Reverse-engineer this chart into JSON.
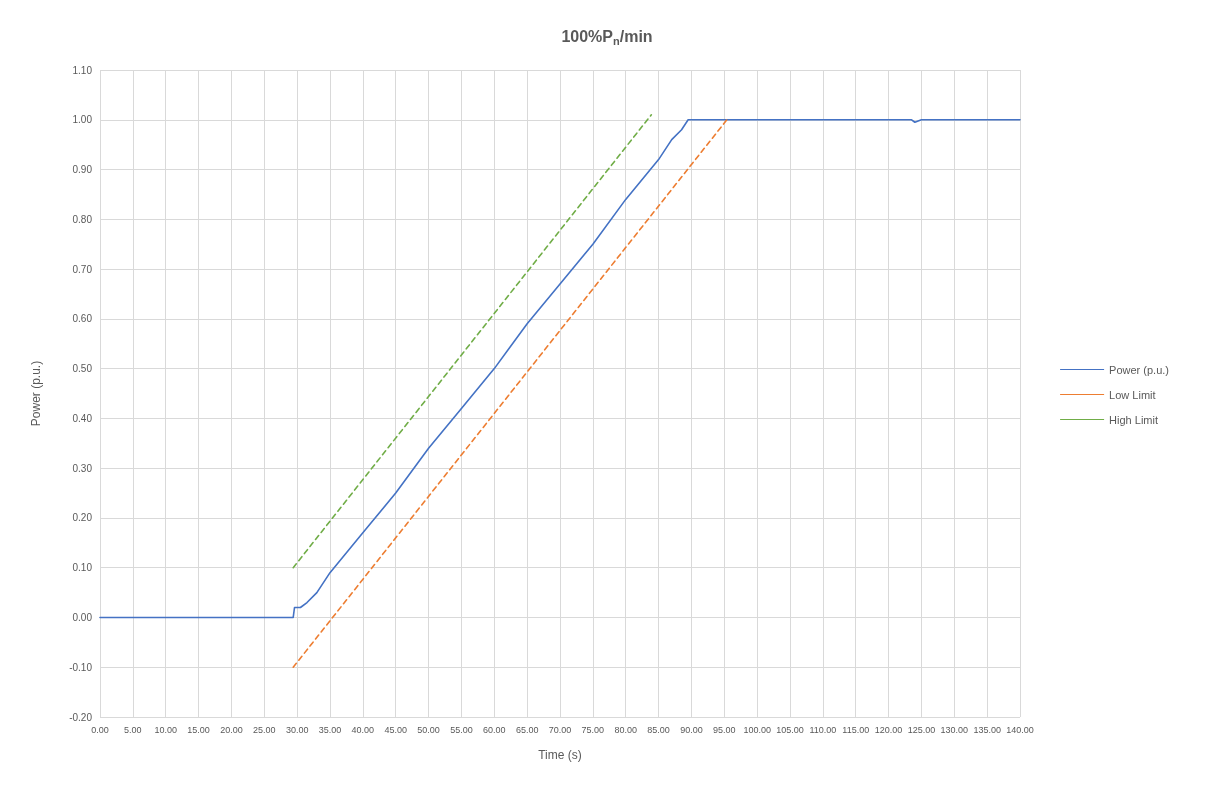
{
  "chart_data": {
    "type": "line",
    "title": "100%P$_{n}$/min",
    "xlabel": "Time (s)",
    "ylabel": "Power (p.u.)",
    "xlim": [
      0,
      140
    ],
    "xticks": [
      {
        "value": 0,
        "label": "0.00"
      },
      {
        "value": 5,
        "label": "5.00"
      },
      {
        "value": 10,
        "label": "10.00"
      },
      {
        "value": 15,
        "label": "15.00"
      },
      {
        "value": 20,
        "label": "20.00"
      },
      {
        "value": 25,
        "label": "25.00"
      },
      {
        "value": 30,
        "label": "30.00"
      },
      {
        "value": 35,
        "label": "35.00"
      },
      {
        "value": 40,
        "label": "40.00"
      },
      {
        "value": 45,
        "label": "45.00"
      },
      {
        "value": 50,
        "label": "50.00"
      },
      {
        "value": 55,
        "label": "55.00"
      },
      {
        "value": 60,
        "label": "60.00"
      },
      {
        "value": 65,
        "label": "65.00"
      },
      {
        "value": 70,
        "label": "70.00"
      },
      {
        "value": 75,
        "label": "75.00"
      },
      {
        "value": 80,
        "label": "80.00"
      },
      {
        "value": 85,
        "label": "85.00"
      },
      {
        "value": 90,
        "label": "90.00"
      },
      {
        "value": 95,
        "label": "95.00"
      },
      {
        "value": 100,
        "label": "100.00"
      },
      {
        "value": 105,
        "label": "105.00"
      },
      {
        "value": 110,
        "label": "110.00"
      },
      {
        "value": 115,
        "label": "115.00"
      },
      {
        "value": 120,
        "label": "120.00"
      },
      {
        "value": 125,
        "label": "125.00"
      },
      {
        "value": 130,
        "label": "130.00"
      },
      {
        "value": 135,
        "label": "135.00"
      },
      {
        "value": 140,
        "label": "140.00"
      }
    ],
    "ylim": [
      -0.2,
      1.1
    ],
    "yticks": [
      {
        "value": -0.2,
        "label": "-0.20"
      },
      {
        "value": -0.1,
        "label": "-0.10"
      },
      {
        "value": 0,
        "label": "0.00"
      },
      {
        "value": 0.1,
        "label": "0.10"
      },
      {
        "value": 0.2,
        "label": "0.20"
      },
      {
        "value": 0.3,
        "label": "0.30"
      },
      {
        "value": 0.4,
        "label": "0.40"
      },
      {
        "value": 0.5,
        "label": "0.50"
      },
      {
        "value": 0.6,
        "label": "0.60"
      },
      {
        "value": 0.7,
        "label": "0.70"
      },
      {
        "value": 0.8,
        "label": "0.80"
      },
      {
        "value": 0.9,
        "label": "0.90"
      },
      {
        "value": 1.0,
        "label": "1.00"
      },
      {
        "value": 1.1,
        "label": "1.10"
      }
    ],
    "grid": true,
    "legend": "right",
    "marker": "none",
    "series": [
      {
        "name": "Power (p.u.)",
        "color": "#4472c4",
        "line_style": "solid",
        "x": [
          0,
          10,
          20,
          29.4,
          29.6,
          30.5,
          31.5,
          33,
          35,
          40,
          45,
          50,
          55,
          60,
          65,
          70,
          75,
          80,
          85,
          87,
          88.5,
          89.5,
          95,
          100,
          110,
          115,
          120,
          123.5,
          124,
          125,
          130,
          135,
          140
        ],
        "values": [
          0,
          0,
          0,
          0,
          0.02,
          0.02,
          0.03,
          0.05,
          0.09,
          0.17,
          0.25,
          0.34,
          0.42,
          0.5,
          0.59,
          0.67,
          0.75,
          0.84,
          0.92,
          0.96,
          0.98,
          1.0,
          1.0,
          1.0,
          1.0,
          1.0,
          1.0,
          1.0,
          0.995,
          1.0,
          1.0,
          1.0,
          1.0
        ]
      },
      {
        "name": "Low Limit",
        "color": "#ed7d31",
        "line_style": "dashed",
        "x": [
          29.4,
          95.4
        ],
        "values": [
          -0.1,
          1.0
        ]
      },
      {
        "name": "High Limit",
        "color": "#70ad47",
        "line_style": "dashed",
        "x": [
          29.4,
          83.9
        ],
        "values": [
          0.1,
          1.01
        ]
      }
    ]
  }
}
